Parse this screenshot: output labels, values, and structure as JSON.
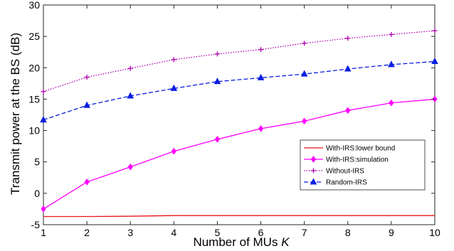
{
  "chart_data": {
    "type": "line",
    "xlabel": "Number of  MUs",
    "xlabel_var": "K",
    "ylabel": "Transmit power at the BS (dB)",
    "xlim": [
      1,
      10
    ],
    "ylim": [
      -5,
      30
    ],
    "xticks": [
      "1",
      "2",
      "3",
      "4",
      "5",
      "6",
      "7",
      "8",
      "9",
      "10"
    ],
    "yticks": [
      "-5",
      "0",
      "5",
      "10",
      "15",
      "20",
      "25",
      "30"
    ],
    "grid": false,
    "legend_position": "lower-right",
    "x": [
      1,
      2,
      3,
      4,
      5,
      6,
      7,
      8,
      9,
      10
    ],
    "series": [
      {
        "name": "With-IRS:lower bound",
        "color": "#e8141c",
        "style": "solid",
        "marker": "none",
        "values": [
          -3.7,
          -3.7,
          -3.65,
          -3.55,
          -3.55,
          -3.55,
          -3.55,
          -3.55,
          -3.55,
          -3.55
        ]
      },
      {
        "name": "With-IRS:simulation",
        "color": "#ff00ff",
        "style": "solid",
        "marker": "diamond",
        "values": [
          -2.5,
          1.8,
          4.2,
          6.7,
          8.6,
          10.3,
          11.5,
          13.2,
          14.4,
          15.0
        ]
      },
      {
        "name": "Without-IRS",
        "color": "#b000b0",
        "style": "dotted",
        "marker": "plus",
        "values": [
          16.2,
          18.5,
          19.9,
          21.3,
          22.2,
          22.9,
          23.9,
          24.7,
          25.3,
          25.9
        ]
      },
      {
        "name": "Random-IRS",
        "color": "#0a1ee0",
        "style": "dashed",
        "marker": "triangle",
        "values": [
          11.7,
          14.0,
          15.5,
          16.7,
          17.8,
          18.4,
          19.0,
          19.8,
          20.5,
          21.0
        ]
      }
    ]
  }
}
